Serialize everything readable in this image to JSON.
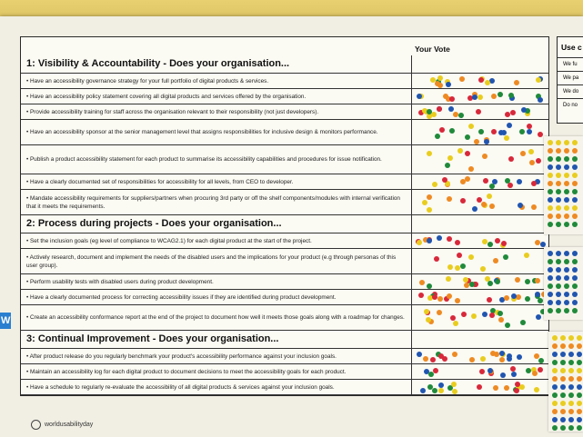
{
  "header": {
    "your_vote": "Your Vote",
    "side_title": "Use c",
    "side_rows": [
      "We fu",
      "We pa",
      "We do",
      "Do no"
    ]
  },
  "sections": [
    {
      "title": "1: Visibility & Accountability - Does your organisation...",
      "items": [
        "Have an accessibility governance strategy for your full portfolio of digital products & services.",
        "Have an accessibility policy statement covering all digital products and services offered by the organisation.",
        "Provide accessibility training for staff across the organisation relevant to their responsibility (not just developers).",
        "Have an accessibility sponsor at the senior management level that assigns responsibilities for inclusive design & monitors performance.",
        "Publish a product accessibility statement for each product to summarise its accessibility capabilities and procedures for issue notification.",
        "Have a clearly documented set of responsibilities for accessibility for all levels, from CEO to developer.",
        "Mandate accessibility requirements for suppliers/partners when procuring 3rd party or off the shelf components/modules with internal verification that it meets the requirements."
      ]
    },
    {
      "title": "2: Process during projects - Does your organisation...",
      "items": [
        "Set the inclusion goals (eg level of compliance to WCAG2.1) for each digital product at the start of the project.",
        "Actively research, document and implement the needs of the disabled users and the implications for your product (e.g through personas of this user group).",
        "Perform usability tests with disabled users during product development.",
        "Have a clearly documented process for correcting accessibility issues if they are identified during product development.",
        "Create an accessibility conformance report at the end of the project to document how well it meets those goals along with a roadmap for changes."
      ]
    },
    {
      "title": "3: Continual Improvement - Does your organisation...",
      "items": [
        "After product release do you regularly benchmark your product's accessibility performance against your inclusion goals.",
        "Maintain an accessibility log for each digital product to document decisions to meet the accessibility goals for each product.",
        "Have a schedule to regularly re-evaluate the accessibility of all digital products & services against your inclusion goals."
      ]
    }
  ],
  "footer": {
    "brand": "worldusabilityday"
  },
  "colors": {
    "red": "#d8283a",
    "green": "#1f8a3a",
    "orange": "#ee8a22",
    "yellow": "#e9cd1e",
    "blue": "#2055b0"
  }
}
